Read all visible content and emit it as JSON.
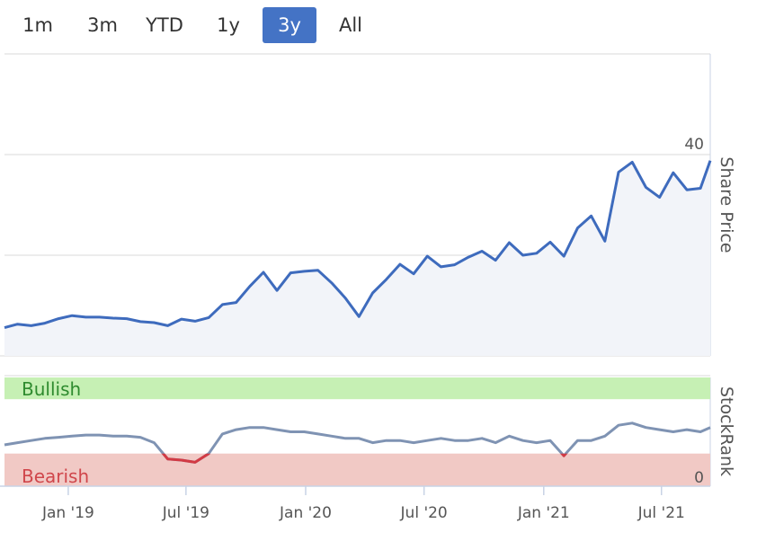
{
  "range_selector": {
    "buttons": [
      {
        "label": "1m",
        "active": false
      },
      {
        "label": "3m",
        "active": false
      },
      {
        "label": "YTD",
        "active": false
      },
      {
        "label": "1y",
        "active": false
      },
      {
        "label": "3y",
        "active": true
      },
      {
        "label": "All",
        "active": false
      }
    ]
  },
  "colors": {
    "price_line": "#3e6bbd",
    "price_fill": "#f2f4f9",
    "grid": "#d8d8d8",
    "bullish_band": "#c6f0b4",
    "bullish_text": "#2e8b2e",
    "bearish_band": "#f1c9c5",
    "bearish_text": "#d0464b",
    "rank_line": "#7f93b3",
    "rank_line_bearish": "#d23a44",
    "active_button": "#4473c5"
  },
  "chart_data": [
    {
      "type": "line",
      "xlabel": "",
      "ylabel": "Share Price",
      "y_ticks": [
        0,
        20,
        40
      ],
      "ylim": [
        0,
        60
      ],
      "x_tick_labels": [
        "Jan '19",
        "Jul '19",
        "Jan '20",
        "Jul '20",
        "Jan '21",
        "Jul '21"
      ],
      "x_range": [
        "2018-09-25",
        "2021-09-14"
      ],
      "grid": true,
      "series": [
        {
          "x": [
            "2018-09-25",
            "2018-10-15",
            "2018-11-05",
            "2018-11-26",
            "2018-12-17",
            "2019-01-07",
            "2019-01-28",
            "2019-02-18",
            "2019-03-11",
            "2019-04-01",
            "2019-04-22",
            "2019-05-13",
            "2019-06-03",
            "2019-06-24",
            "2019-07-15",
            "2019-08-05",
            "2019-08-26",
            "2019-09-16",
            "2019-10-07",
            "2019-10-28",
            "2019-11-18",
            "2019-12-09",
            "2019-12-30",
            "2020-01-20",
            "2020-02-10",
            "2020-03-02",
            "2020-03-23",
            "2020-04-13",
            "2020-05-04",
            "2020-05-25",
            "2020-06-15",
            "2020-07-06",
            "2020-07-27",
            "2020-08-17",
            "2020-09-07",
            "2020-09-28",
            "2020-10-19",
            "2020-11-09",
            "2020-11-30",
            "2020-12-21",
            "2021-01-11",
            "2021-02-01",
            "2021-02-22",
            "2021-03-15",
            "2021-04-05",
            "2021-04-26",
            "2021-05-17",
            "2021-06-07",
            "2021-06-28",
            "2021-07-19",
            "2021-08-09",
            "2021-08-30",
            "2021-09-14"
          ],
          "values": [
            5.6,
            6.3,
            6.0,
            6.5,
            7.4,
            8.0,
            7.7,
            7.7,
            7.5,
            7.4,
            6.8,
            6.6,
            6.0,
            7.3,
            6.9,
            7.6,
            10.2,
            10.6,
            13.8,
            16.6,
            13.0,
            16.5,
            16.8,
            17.0,
            14.5,
            11.5,
            7.8,
            12.5,
            15.2,
            18.2,
            16.3,
            19.8,
            17.7,
            18.1,
            19.6,
            20.8,
            19.0,
            22.5,
            20.0,
            20.4,
            22.6,
            19.8,
            25.4,
            27.8,
            22.8,
            36.5,
            38.5,
            33.5,
            31.5,
            36.4,
            33.0,
            33.3,
            38.8
          ]
        }
      ]
    },
    {
      "type": "line",
      "ylabel": "StockRank",
      "y_ticks": [
        0
      ],
      "ylim": [
        0,
        100
      ],
      "bands": [
        {
          "label": "Bullish",
          "from": 80,
          "to": 100
        },
        {
          "label": "Bearish",
          "from": 0,
          "to": 30
        }
      ],
      "series": [
        {
          "x": [
            "2018-09-25",
            "2018-10-15",
            "2018-11-05",
            "2018-11-26",
            "2018-12-17",
            "2019-01-07",
            "2019-01-28",
            "2019-02-18",
            "2019-03-11",
            "2019-04-01",
            "2019-04-22",
            "2019-05-13",
            "2019-06-03",
            "2019-06-24",
            "2019-07-15",
            "2019-08-05",
            "2019-08-26",
            "2019-09-16",
            "2019-10-07",
            "2019-10-28",
            "2019-11-18",
            "2019-12-09",
            "2019-12-30",
            "2020-01-20",
            "2020-02-10",
            "2020-03-02",
            "2020-03-23",
            "2020-04-13",
            "2020-05-04",
            "2020-05-25",
            "2020-06-15",
            "2020-07-06",
            "2020-07-27",
            "2020-08-17",
            "2020-09-07",
            "2020-09-28",
            "2020-10-19",
            "2020-11-09",
            "2020-11-30",
            "2020-12-21",
            "2021-01-11",
            "2021-02-01",
            "2021-02-22",
            "2021-03-15",
            "2021-04-05",
            "2021-04-26",
            "2021-05-17",
            "2021-06-07",
            "2021-06-28",
            "2021-07-19",
            "2021-08-09",
            "2021-08-30",
            "2021-09-14"
          ],
          "values": [
            38,
            40,
            42,
            44,
            45,
            46,
            47,
            47,
            46,
            46,
            45,
            40,
            25,
            24,
            22,
            30,
            48,
            52,
            54,
            54,
            52,
            50,
            50,
            48,
            46,
            44,
            44,
            40,
            42,
            42,
            40,
            42,
            44,
            42,
            42,
            44,
            40,
            46,
            42,
            40,
            42,
            28,
            42,
            42,
            46,
            56,
            58,
            54,
            52,
            50,
            52,
            50,
            54
          ]
        }
      ]
    }
  ]
}
